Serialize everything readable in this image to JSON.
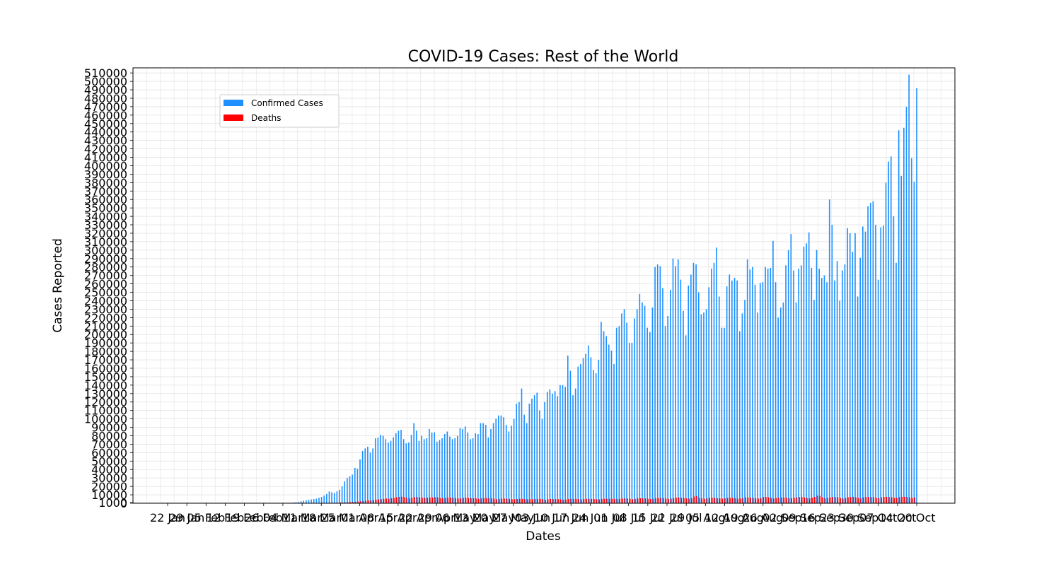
{
  "chart_data": {
    "type": "bar",
    "title": "COVID-19 Cases: Rest of the World",
    "xlabel": "Dates",
    "ylabel": "Cases Reported",
    "ylim": [
      0,
      516000
    ],
    "grid": true,
    "legend_placement": "upper-left",
    "y_ticks": [
      0,
      1000,
      10000,
      20000,
      30000,
      40000,
      50000,
      60000,
      70000,
      80000,
      90000,
      100000,
      110000,
      120000,
      130000,
      140000,
      150000,
      160000,
      170000,
      180000,
      190000,
      200000,
      210000,
      220000,
      230000,
      240000,
      250000,
      260000,
      270000,
      280000,
      290000,
      300000,
      310000,
      320000,
      330000,
      340000,
      350000,
      360000,
      370000,
      380000,
      390000,
      400000,
      410000,
      420000,
      430000,
      440000,
      450000,
      460000,
      470000,
      480000,
      490000,
      500000,
      510000
    ],
    "x_tick_labels": [
      "22 Jan",
      "29 Jan",
      "05 Feb",
      "12 Feb",
      "19 Feb",
      "26 Feb",
      "04 Mar",
      "11 Mar",
      "18 Mar",
      "25 Mar",
      "01 Apr",
      "08 Apr",
      "15 Apr",
      "22 Apr",
      "29 Apr",
      "06 May",
      "13 May",
      "20 May",
      "27 May",
      "03 Jun",
      "10 Jun",
      "17 Jun",
      "24 Jun",
      "01 Jul",
      "08 Jul",
      "15 Jul",
      "22 Jul",
      "29 Jul",
      "05 Aug",
      "12 Aug",
      "19 Aug",
      "26 Aug",
      "02 Sep",
      "09 Sep",
      "16 Sep",
      "23 Sep",
      "30 Sep",
      "07 Oct",
      "14 Oct",
      "20 Oct"
    ],
    "series": [
      {
        "name": "Confirmed Cases",
        "color": "#1e90ff",
        "values": [
          0,
          0,
          0,
          0,
          0,
          0,
          0,
          0,
          0,
          0,
          0,
          0,
          0,
          0,
          0,
          0,
          0,
          0,
          0,
          0,
          0,
          0,
          0,
          0,
          0,
          0,
          0,
          0,
          0,
          0,
          0,
          0,
          0,
          0,
          0,
          0,
          0,
          0,
          0,
          0,
          0,
          0,
          0,
          0,
          0,
          0,
          0,
          300,
          500,
          800,
          1200,
          1600,
          2200,
          3000,
          3500,
          4000,
          4500,
          5000,
          5500,
          6500,
          7500,
          9000,
          11000,
          14000,
          13000,
          12000,
          14000,
          16000,
          20000,
          26000,
          30000,
          32000,
          34000,
          42000,
          41000,
          52000,
          62000,
          65000,
          67000,
          60000,
          65000,
          77000,
          78000,
          81000,
          80000,
          76000,
          72000,
          74000,
          78000,
          83000,
          86000,
          87000,
          76000,
          71000,
          72000,
          81000,
          95000,
          86000,
          74000,
          80000,
          76000,
          77000,
          88000,
          84000,
          84000,
          73000,
          75000,
          77000,
          82000,
          85000,
          79000,
          76000,
          77000,
          80000,
          89000,
          88000,
          91000,
          84000,
          76000,
          77000,
          83000,
          82000,
          95000,
          95000,
          93000,
          78000,
          88000,
          95000,
          100000,
          104000,
          104000,
          102000,
          93000,
          85000,
          92000,
          100000,
          118000,
          120000,
          136000,
          105000,
          95000,
          118000,
          124000,
          128000,
          131000,
          110000,
          100000,
          120000,
          132000,
          135000,
          130000,
          133000,
          127000,
          140000,
          140000,
          138000,
          175000,
          157000,
          128000,
          136000,
          162000,
          165000,
          172000,
          177000,
          187000,
          173000,
          158000,
          154000,
          170000,
          215000,
          204000,
          198000,
          188000,
          181000,
          165000,
          208000,
          210000,
          225000,
          230000,
          214000,
          190000,
          190000,
          219000,
          230000,
          248000,
          238000,
          234000,
          208000,
          203000,
          232000,
          280000,
          283000,
          281000,
          255000,
          210000,
          222000,
          253000,
          290000,
          281000,
          289000,
          265000,
          228000,
          199000,
          258000,
          271000,
          285000,
          283000,
          250000,
          224000,
          226000,
          230000,
          256000,
          278000,
          285000,
          303000,
          245000,
          208000,
          208000,
          257000,
          271000,
          264000,
          267000,
          264000,
          204000,
          225000,
          241000,
          289000,
          277000,
          280000,
          259000,
          226000,
          261000,
          262000,
          280000,
          278000,
          279000,
          311000,
          262000,
          220000,
          232000,
          238000,
          282000,
          300000,
          319000,
          276000,
          238000,
          278000,
          282000,
          304000,
          308000,
          321000,
          279000,
          241000,
          300000,
          278000,
          267000,
          270000,
          262000,
          360000,
          330000,
          264000,
          287000,
          240000,
          276000,
          283000,
          326000,
          320000,
          298000,
          320000,
          245000,
          291000,
          328000,
          322000,
          352000,
          356000,
          358000,
          330000,
          265000,
          327000,
          329000,
          380000,
          405000,
          411000,
          340000,
          285000,
          442000,
          388000,
          445000,
          470000,
          508000,
          409000,
          381000,
          492000
        ],
        "x_positions_note": ""
      },
      {
        "name": "Deaths",
        "color": "#ff0000",
        "values": [
          0,
          0,
          0,
          0,
          0,
          0,
          0,
          0,
          0,
          0,
          0,
          0,
          0,
          0,
          0,
          0,
          0,
          0,
          0,
          0,
          0,
          0,
          0,
          0,
          0,
          0,
          0,
          0,
          0,
          0,
          0,
          0,
          0,
          0,
          0,
          0,
          0,
          0,
          0,
          0,
          0,
          0,
          0,
          0,
          0,
          0,
          0,
          0,
          0,
          0,
          0,
          0,
          0,
          0,
          100,
          100,
          150,
          150,
          200,
          250,
          300,
          350,
          400,
          450,
          500,
          600,
          700,
          800,
          900,
          1000,
          1200,
          1400,
          1600,
          1800,
          2000,
          2300,
          2600,
          3000,
          3300,
          3600,
          4000,
          4300,
          4600,
          4900,
          5200,
          5500,
          5500,
          6000,
          6300,
          7200,
          7600,
          7800,
          7200,
          6500,
          6000,
          6400,
          7300,
          7400,
          7000,
          6700,
          6500,
          6700,
          6800,
          6900,
          7200,
          7000,
          6200,
          6000,
          6400,
          6800,
          6800,
          6500,
          6000,
          5600,
          5800,
          6500,
          6700,
          6400,
          6300,
          6100,
          5700,
          5300,
          5900,
          6300,
          6200,
          6100,
          5900,
          5400,
          4800,
          5200,
          5400,
          5600,
          5500,
          5200,
          4800,
          4800,
          5100,
          5300,
          5200,
          5000,
          4800,
          4700,
          4800,
          5100,
          5200,
          5100,
          4800,
          4300,
          4700,
          5100,
          5000,
          4900,
          4800,
          4700,
          4300,
          4500,
          5100,
          5300,
          5000,
          5200,
          5000,
          4600,
          5000,
          5300,
          5200,
          5100,
          5000,
          4700,
          4600,
          5100,
          5300,
          5500,
          5300,
          5200,
          5200,
          5000,
          5400,
          5600,
          5800,
          5500,
          5300,
          4800,
          5300,
          5800,
          6000,
          5900,
          5700,
          5300,
          5000,
          5300,
          6000,
          6300,
          6500,
          6100,
          5600,
          5200,
          5600,
          6100,
          6800,
          6900,
          6500,
          6300,
          5800,
          5500,
          6000,
          8000,
          8500,
          6600,
          5800,
          5300,
          5900,
          6400,
          6600,
          6500,
          6100,
          5800,
          5400,
          6000,
          6300,
          6500,
          6300,
          6100,
          5500,
          5600,
          6200,
          6900,
          6800,
          6700,
          6500,
          5900,
          5600,
          6100,
          7400,
          7500,
          7000,
          6500,
          5700,
          6200,
          6700,
          6900,
          6800,
          6600,
          6100,
          5900,
          6500,
          7000,
          7400,
          7300,
          7000,
          6300,
          5900,
          6700,
          7400,
          9000,
          8700,
          7000,
          6100,
          6300,
          7000,
          7300,
          7300,
          7100,
          6400,
          5700,
          6300,
          7200,
          7300,
          7600,
          7000,
          6300,
          6100,
          7100,
          7300,
          7500,
          7400,
          7200,
          6400,
          6100,
          7100,
          7500,
          7600,
          7300,
          7200,
          6400,
          6500,
          7300,
          7600,
          7700,
          7500,
          6900,
          6200,
          7100
        ]
      }
    ]
  }
}
